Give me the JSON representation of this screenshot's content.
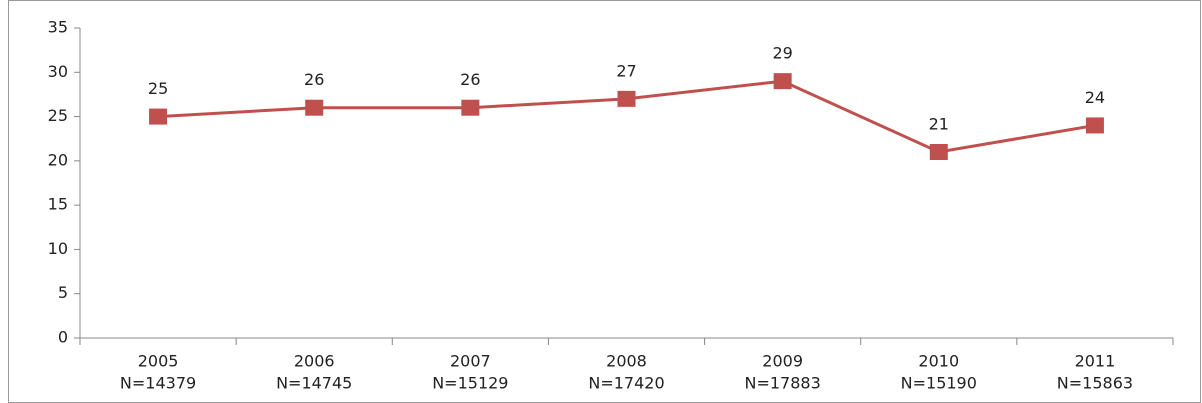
{
  "chart_data": {
    "type": "line",
    "categories": [
      "2005",
      "2006",
      "2007",
      "2008",
      "2009",
      "2010",
      "2011"
    ],
    "n_labels": [
      "N=14379",
      "N=14745",
      "N=15129",
      "N=17420",
      "N=17883",
      "N=15190",
      "N=15863"
    ],
    "series": [
      {
        "name": null,
        "color": "#c0504d",
        "values": [
          25,
          26,
          26,
          27,
          29,
          21,
          24
        ]
      }
    ],
    "ylim": [
      0,
      35
    ],
    "yticks": [
      0,
      5,
      10,
      15,
      20,
      25,
      30,
      35
    ],
    "grid": false
  }
}
